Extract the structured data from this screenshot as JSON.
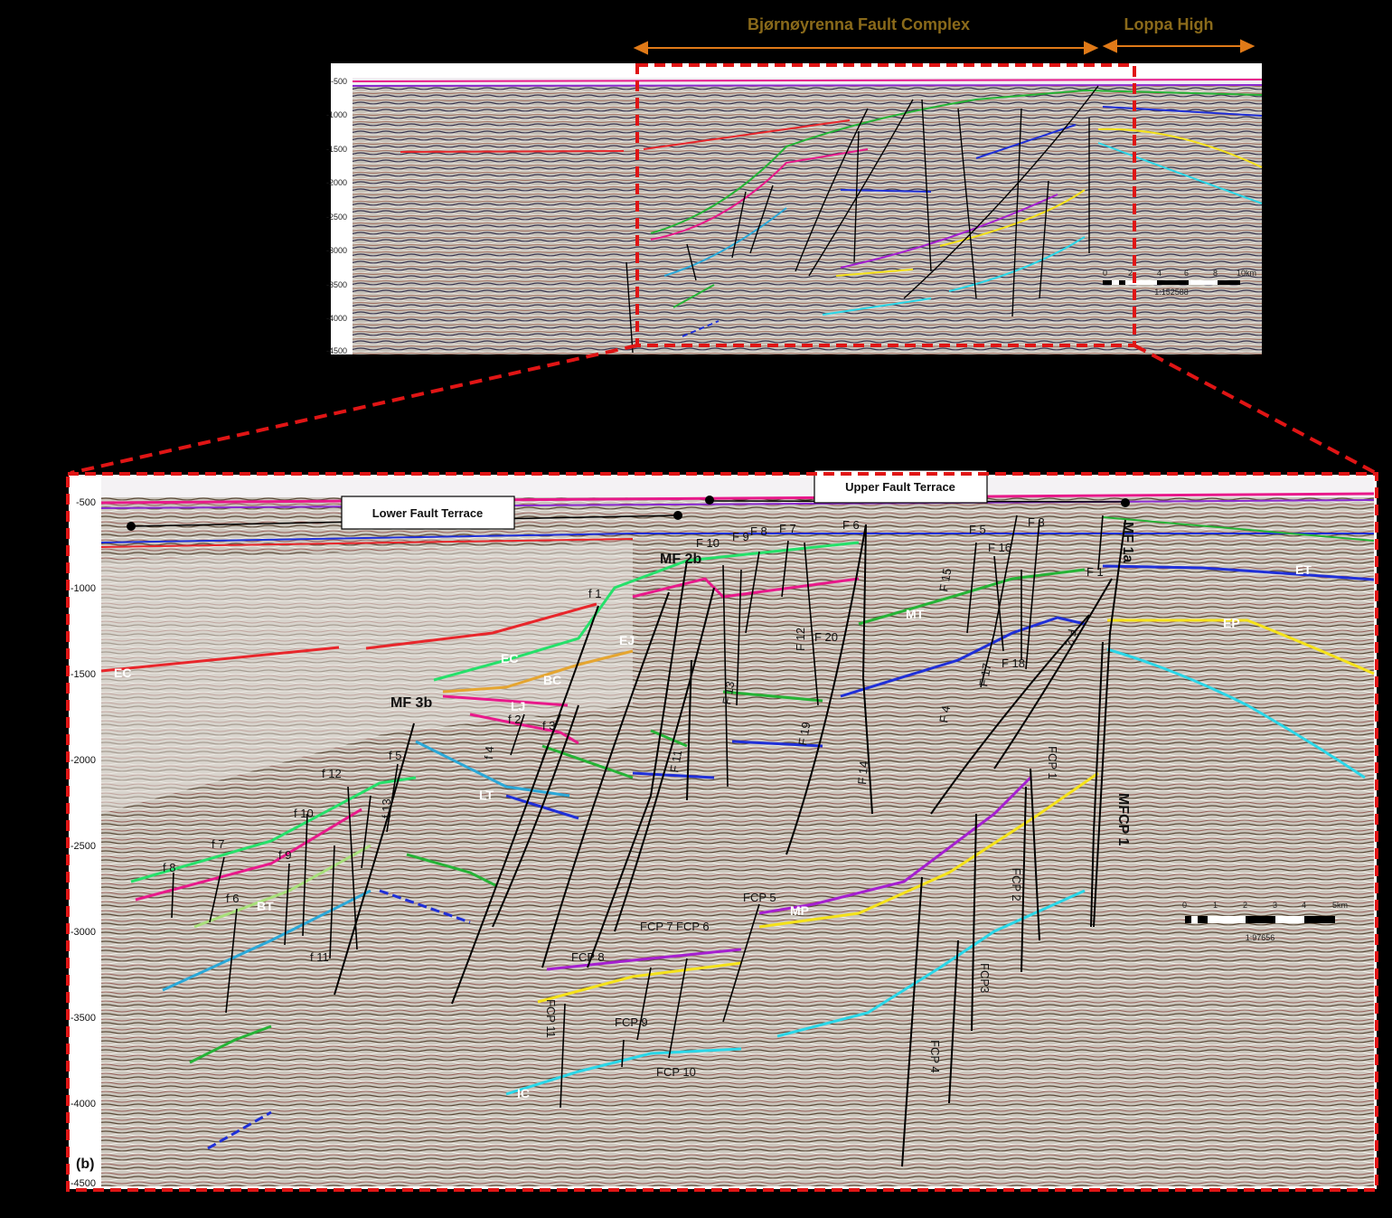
{
  "top_panel": {
    "regions": [
      {
        "label": "Bjørnøyrenna Fault Complex"
      },
      {
        "label": "Loppa High"
      }
    ],
    "depth_ticks": [
      "-500",
      "-1000",
      "-1500",
      "-2000",
      "-2500",
      "-3000",
      "-3500",
      "-4000",
      "-4500"
    ],
    "scale_bar": {
      "labels": [
        "0",
        "2",
        "4",
        "6",
        "8",
        "10km"
      ],
      "ratio": "1:152588"
    }
  },
  "bottom_panel": {
    "panel_letter": "(b)",
    "terraces": {
      "upper": "Upper Fault Terrace",
      "lower": "Lower Fault Terrace"
    },
    "depth_ticks": [
      "-500",
      "-1000",
      "-1500",
      "-2000",
      "-2500",
      "-3000",
      "-3500",
      "-4000",
      "-4500"
    ],
    "scale_bar": {
      "labels": [
        "0",
        "1",
        "2",
        "3",
        "4",
        "5km"
      ],
      "ratio": "1:97656"
    },
    "major_faults": [
      "MF 1a",
      "MF 2b",
      "MF 3b",
      "MFCP 1"
    ],
    "faults_upper": [
      "F 10",
      "F 9",
      "F 8",
      "F 7",
      "F 6",
      "F 5",
      "F 3",
      "F 16",
      "F 15",
      "F 1",
      "F 2",
      "F 12",
      "F 20",
      "F 13",
      "F 19",
      "F 14",
      "F 17",
      "F 18",
      "F 11",
      "F 4"
    ],
    "faults_lower": [
      "f 1",
      "f 3",
      "f 5",
      "f 4",
      "f 2",
      "f 11",
      "f 12",
      "f 10",
      "f 9",
      "f 7",
      "f 8",
      "f 6",
      "f 13"
    ],
    "fcp_faults": [
      "FCP 5",
      "FCP 7",
      "FCP 6",
      "FCP 8",
      "FCP 9",
      "FCP 10",
      "FCP 11",
      "FCP 4",
      "FCP3",
      "FCP 2",
      "FCP 1"
    ],
    "horizons": [
      {
        "label": "ET",
        "color": "#1f2fd8"
      },
      {
        "label": "EP",
        "color": "#f5e21a"
      },
      {
        "label": "MT",
        "color": "#25b336"
      },
      {
        "label": "EC",
        "color": "#e8262b"
      },
      {
        "label": "EJ",
        "color": "#e5a530"
      },
      {
        "label": "BC",
        "color": "#e8198a"
      },
      {
        "label": "LJ",
        "color": "#e8198a"
      },
      {
        "label": "LT",
        "color": "#2aa8d8"
      },
      {
        "label": "BT",
        "color": "#a8e07a"
      },
      {
        "label": "MP",
        "color": "#a51fd0"
      },
      {
        "label": "IC",
        "color": "#2ad7e8"
      }
    ]
  }
}
